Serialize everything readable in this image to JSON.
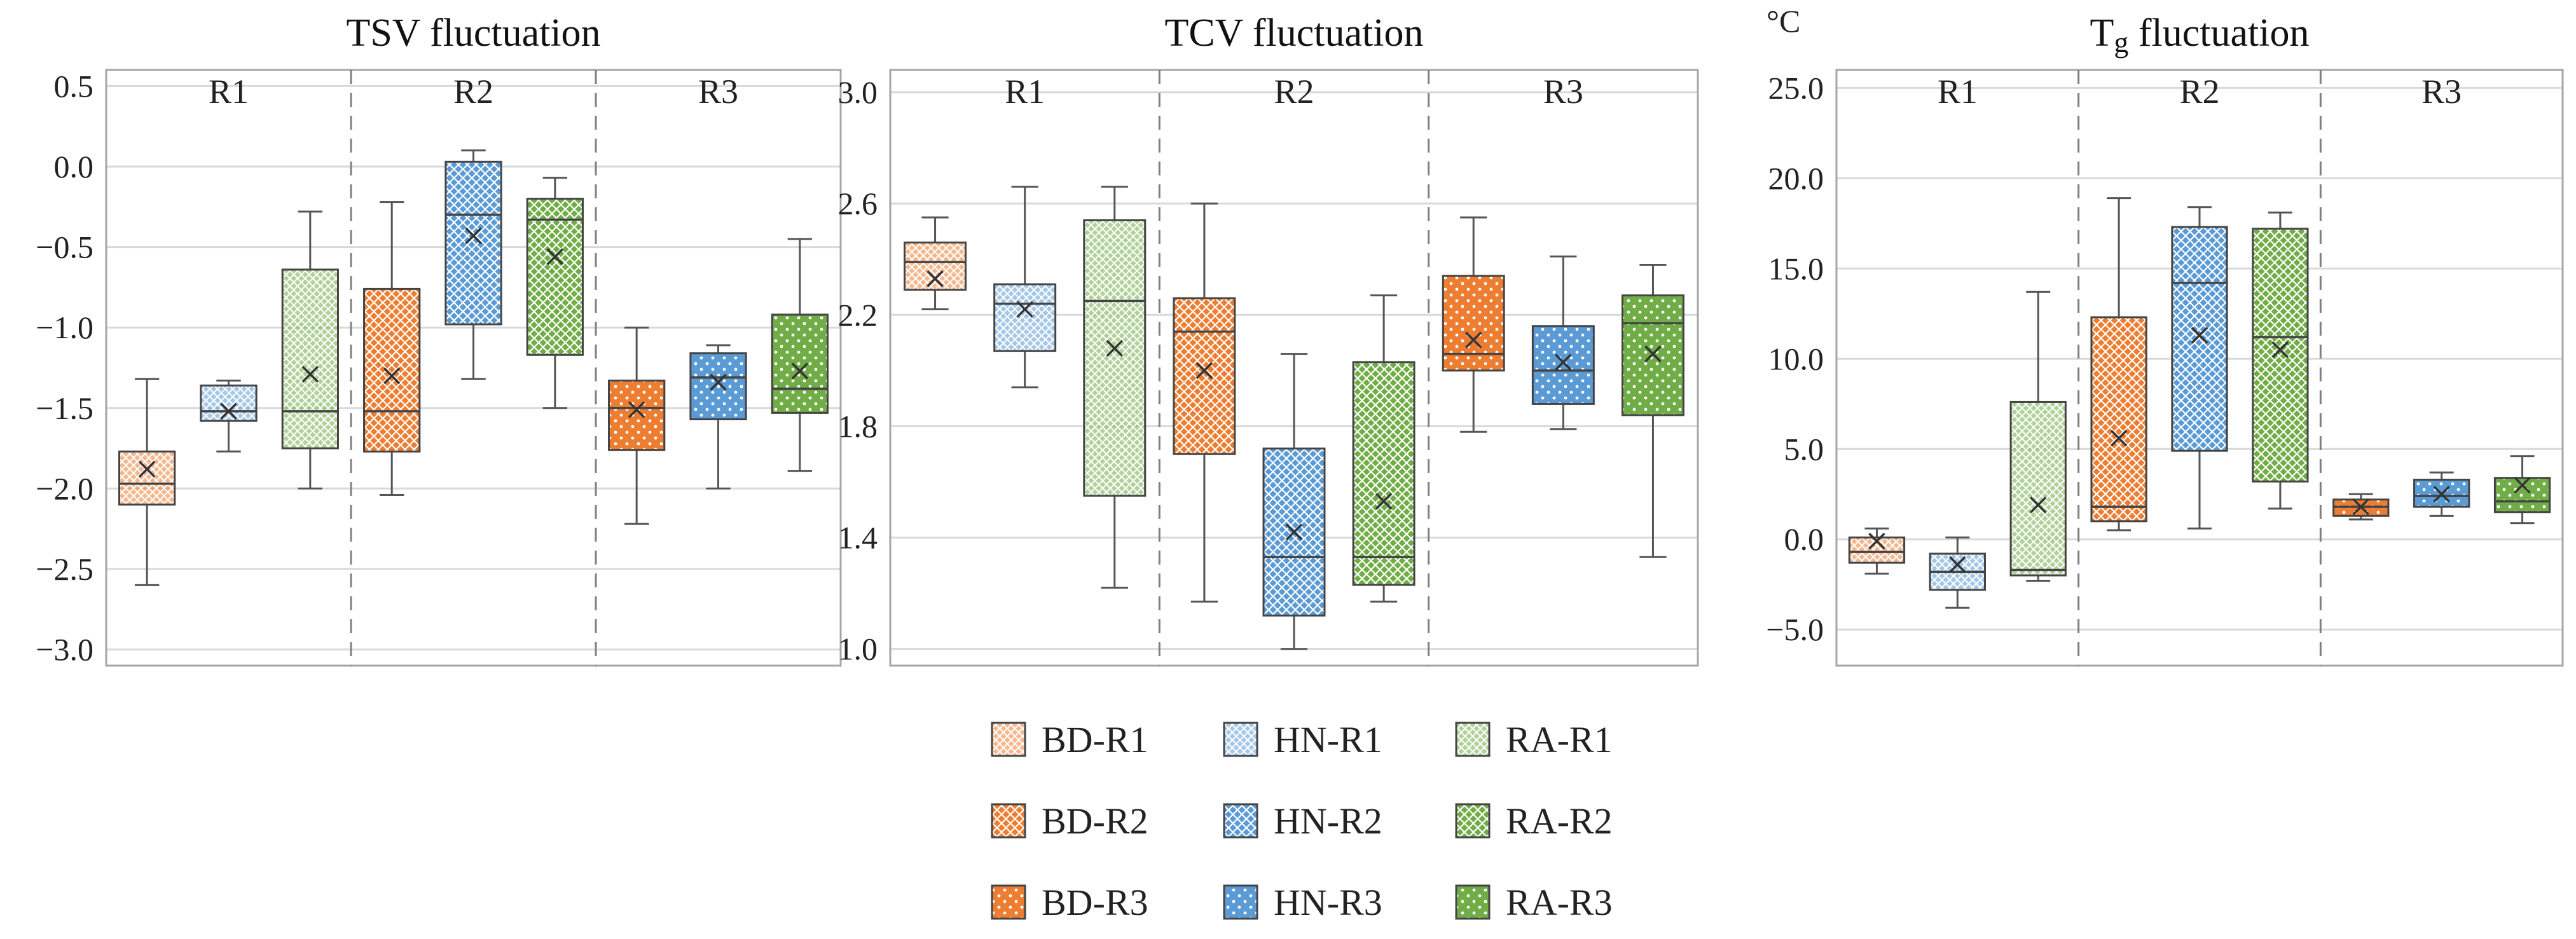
{
  "colors": {
    "BD": "#ed7d31",
    "HN": "#5b9bd5",
    "RA": "#70ad47",
    "grid": "#d9d9d9",
    "frame": "#a6a6a6",
    "divider": "#808080"
  },
  "legend": {
    "items": [
      {
        "label": "BD-R1",
        "group": "BD",
        "region": "R1"
      },
      {
        "label": "HN-R1",
        "group": "HN",
        "region": "R1"
      },
      {
        "label": "RA-R1",
        "group": "RA",
        "region": "R1"
      },
      {
        "label": "BD-R2",
        "group": "BD",
        "region": "R2"
      },
      {
        "label": "HN-R2",
        "group": "HN",
        "region": "R2"
      },
      {
        "label": "RA-R2",
        "group": "RA",
        "region": "R2"
      },
      {
        "label": "BD-R3",
        "group": "BD",
        "region": "R3"
      },
      {
        "label": "HN-R3",
        "group": "HN",
        "region": "R3"
      },
      {
        "label": "RA-R3",
        "group": "RA",
        "region": "R3"
      }
    ]
  },
  "chart_data": [
    {
      "type": "box",
      "title": "TSV fluctuation",
      "unit": "",
      "regions": [
        "R1",
        "R2",
        "R3"
      ],
      "ylim": [
        -3.1,
        0.6
      ],
      "yticks": [
        "0.5",
        "0.0",
        "−0.5",
        "−1.0",
        "−1.5",
        "−2.0",
        "−2.5",
        "−3.0"
      ],
      "ytick_values": [
        0.5,
        0.0,
        -0.5,
        -1.0,
        -1.5,
        -2.0,
        -2.5,
        -3.0
      ],
      "boxes": [
        {
          "series": "BD-R1",
          "min": -2.6,
          "q1": -2.1,
          "median": -1.97,
          "q3": -1.77,
          "max": -1.32,
          "mean": -1.88
        },
        {
          "series": "HN-R1",
          "min": -1.77,
          "q1": -1.58,
          "median": -1.52,
          "q3": -1.36,
          "max": -1.33,
          "mean": -1.52
        },
        {
          "series": "RA-R1",
          "min": -2.0,
          "q1": -1.75,
          "median": -1.52,
          "q3": -0.64,
          "max": -0.28,
          "mean": -1.29
        },
        {
          "series": "BD-R2",
          "min": -2.04,
          "q1": -1.77,
          "median": -1.52,
          "q3": -0.76,
          "max": -0.22,
          "mean": -1.3
        },
        {
          "series": "HN-R2",
          "min": -1.32,
          "q1": -0.98,
          "median": -0.3,
          "q3": 0.03,
          "max": 0.1,
          "mean": -0.43
        },
        {
          "series": "RA-R2",
          "min": -1.5,
          "q1": -1.17,
          "median": -0.33,
          "q3": -0.2,
          "max": -0.07,
          "mean": -0.56
        },
        {
          "series": "BD-R3",
          "min": -2.22,
          "q1": -1.76,
          "median": -1.5,
          "q3": -1.33,
          "max": -1.0,
          "mean": -1.51
        },
        {
          "series": "HN-R3",
          "min": -2.0,
          "q1": -1.57,
          "median": -1.31,
          "q3": -1.16,
          "max": -1.11,
          "mean": -1.34
        },
        {
          "series": "RA-R3",
          "min": -1.89,
          "q1": -1.53,
          "median": -1.38,
          "q3": -0.92,
          "max": -0.45,
          "mean": -1.27
        }
      ]
    },
    {
      "type": "box",
      "title": "TCV fluctuation",
      "unit": "",
      "regions": [
        "R1",
        "R2",
        "R3"
      ],
      "ylim": [
        0.94,
        3.08
      ],
      "yticks": [
        "3.0",
        "2.6",
        "2.2",
        "1.8",
        "1.4",
        "1.0"
      ],
      "ytick_values": [
        3.0,
        2.6,
        2.2,
        1.8,
        1.4,
        1.0
      ],
      "boxes": [
        {
          "series": "BD-R1",
          "min": 2.22,
          "q1": 2.29,
          "median": 2.39,
          "q3": 2.46,
          "max": 2.55,
          "mean": 2.33
        },
        {
          "series": "HN-R1",
          "min": 1.94,
          "q1": 2.07,
          "median": 2.24,
          "q3": 2.31,
          "max": 2.66,
          "mean": 2.22
        },
        {
          "series": "RA-R1",
          "min": 1.22,
          "q1": 1.55,
          "median": 2.25,
          "q3": 2.54,
          "max": 2.66,
          "mean": 2.08
        },
        {
          "series": "BD-R2",
          "min": 1.17,
          "q1": 1.7,
          "median": 2.14,
          "q3": 2.26,
          "max": 2.6,
          "mean": 2.0
        },
        {
          "series": "HN-R2",
          "min": 1.0,
          "q1": 1.12,
          "median": 1.33,
          "q3": 1.72,
          "max": 2.06,
          "mean": 1.42
        },
        {
          "series": "RA-R2",
          "min": 1.17,
          "q1": 1.23,
          "median": 1.33,
          "q3": 2.03,
          "max": 2.27,
          "mean": 1.53
        },
        {
          "series": "BD-R3",
          "min": 1.78,
          "q1": 2.0,
          "median": 2.06,
          "q3": 2.34,
          "max": 2.55,
          "mean": 2.11
        },
        {
          "series": "HN-R3",
          "min": 1.79,
          "q1": 1.88,
          "median": 2.0,
          "q3": 2.16,
          "max": 2.41,
          "mean": 2.03
        },
        {
          "series": "RA-R3",
          "min": 1.33,
          "q1": 1.84,
          "median": 2.17,
          "q3": 2.27,
          "max": 2.38,
          "mean": 2.06
        }
      ]
    },
    {
      "type": "box",
      "title": "Tg fluctuation",
      "title_main": "T",
      "title_sub": "g",
      "title_rest": " fluctuation",
      "unit": "°C",
      "regions": [
        "R1",
        "R2",
        "R3"
      ],
      "ylim": [
        -7.0,
        26.0
      ],
      "yticks": [
        "25.0",
        "20.0",
        "15.0",
        "10.0",
        "5.0",
        "0.0",
        "−5.0"
      ],
      "ytick_values": [
        25.0,
        20.0,
        15.0,
        10.0,
        5.0,
        0.0,
        -5.0
      ],
      "boxes": [
        {
          "series": "BD-R1",
          "min": -1.9,
          "q1": -1.3,
          "median": -0.7,
          "q3": 0.1,
          "max": 0.6,
          "mean": -0.1
        },
        {
          "series": "HN-R1",
          "min": -3.8,
          "q1": -2.8,
          "median": -1.8,
          "q3": -0.8,
          "max": 0.1,
          "mean": -1.4
        },
        {
          "series": "RA-R1",
          "min": -2.3,
          "q1": -2.0,
          "median": -1.7,
          "q3": 7.6,
          "max": 13.7,
          "mean": 1.9
        },
        {
          "series": "BD-R2",
          "min": 0.5,
          "q1": 1.0,
          "median": 1.8,
          "q3": 12.3,
          "max": 18.9,
          "mean": 5.6
        },
        {
          "series": "HN-R2",
          "min": 0.6,
          "q1": 4.9,
          "median": 14.2,
          "q3": 17.3,
          "max": 18.4,
          "mean": 11.3
        },
        {
          "series": "RA-R2",
          "min": 1.7,
          "q1": 3.2,
          "median": 11.2,
          "q3": 17.2,
          "max": 18.1,
          "mean": 10.5
        },
        {
          "series": "BD-R3",
          "min": 1.1,
          "q1": 1.3,
          "median": 1.8,
          "q3": 2.2,
          "max": 2.5,
          "mean": 1.8
        },
        {
          "series": "HN-R3",
          "min": 1.3,
          "q1": 1.8,
          "median": 2.4,
          "q3": 3.3,
          "max": 3.7,
          "mean": 2.5
        },
        {
          "series": "RA-R3",
          "min": 0.9,
          "q1": 1.5,
          "median": 2.1,
          "q3": 3.4,
          "max": 4.6,
          "mean": 3.0
        }
      ]
    }
  ]
}
